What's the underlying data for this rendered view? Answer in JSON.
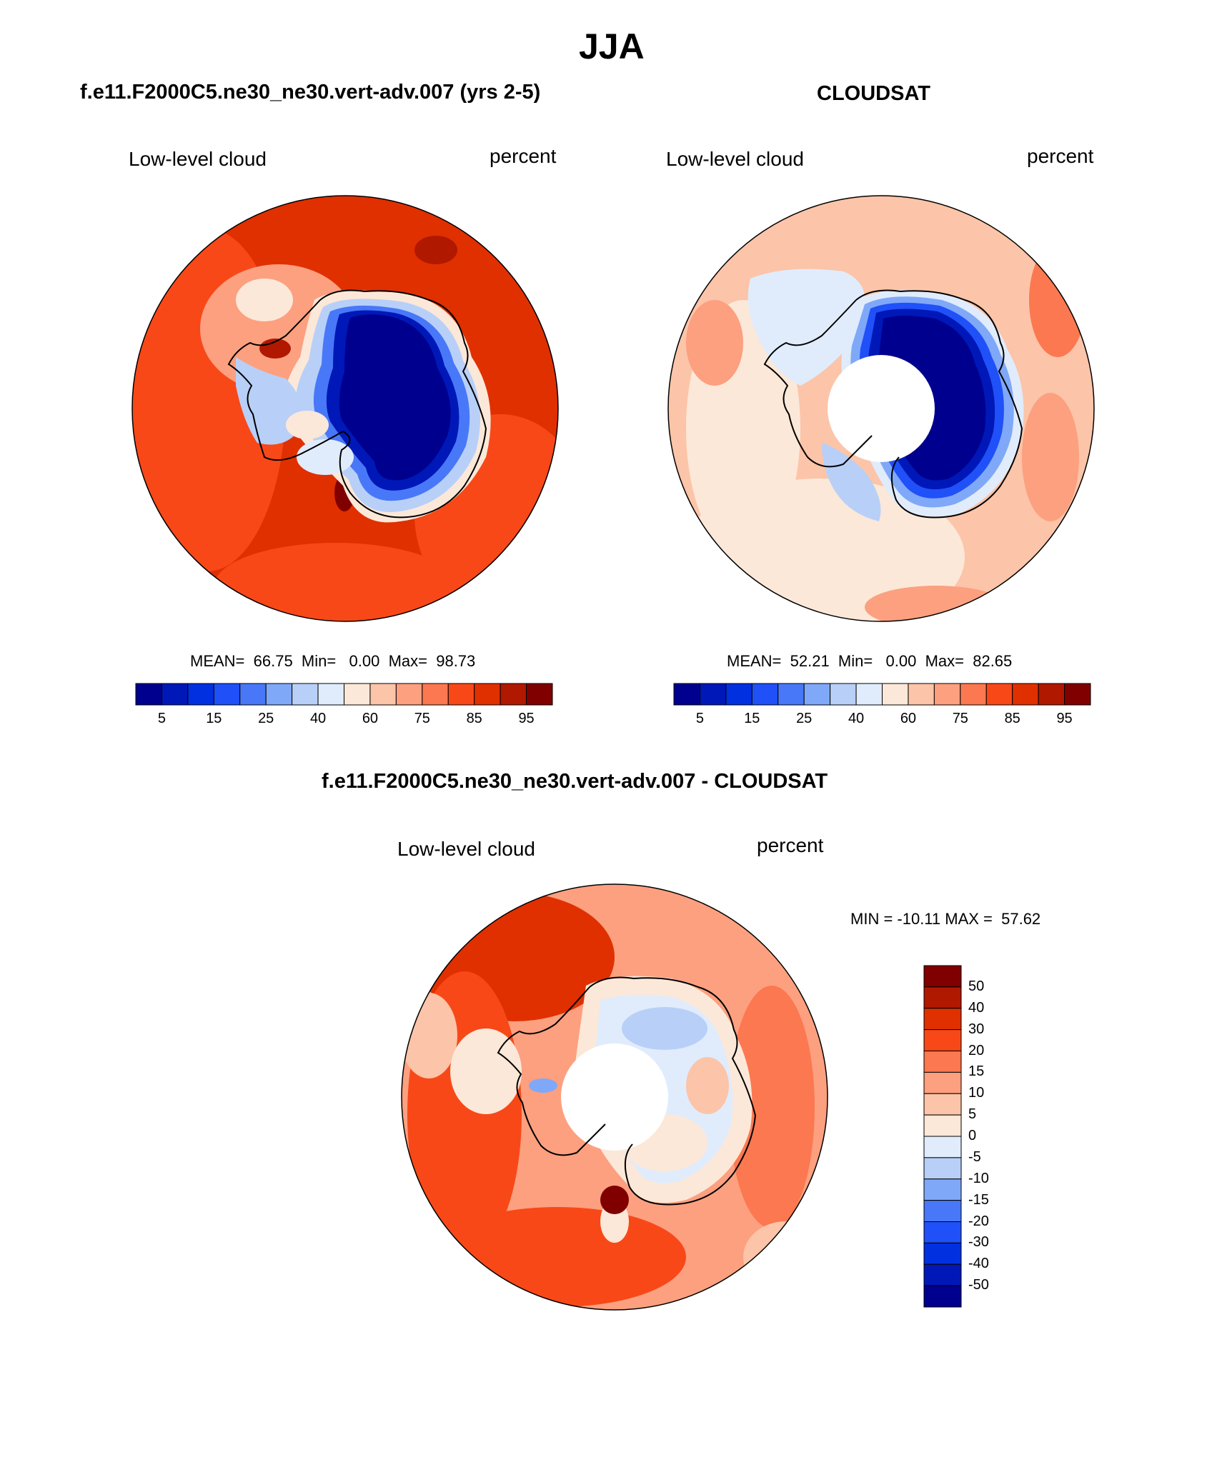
{
  "title": "JJA",
  "colors": {
    "abs_palette": [
      "#00008f",
      "#0018b8",
      "#0030e0",
      "#2050f8",
      "#4878f8",
      "#80a8f8",
      "#b8d0f8",
      "#e0ecfc",
      "#fce8d8",
      "#fcc4a8",
      "#fca080",
      "#fc7850",
      "#f84818",
      "#e03000",
      "#b01800",
      "#800000"
    ],
    "diff_palette": [
      "#00008f",
      "#0018b8",
      "#0030e0",
      "#2050f8",
      "#4878f8",
      "#80a8f8",
      "#b8d0f8",
      "#e0ecfc",
      "#fce8d8",
      "#fcc4a8",
      "#fca080",
      "#fc7850",
      "#f84818",
      "#e03000",
      "#b01800",
      "#800000"
    ]
  },
  "panels": [
    {
      "id": "model",
      "header": "f.e11.F2000C5.ne30_ne30.vert-adv.007 (yrs 2-5)",
      "variable": "Low-level cloud",
      "units": "percent",
      "stats": "MEAN=  66.75  Min=   0.00  Max=  98.73",
      "colorbar_labels": [
        "5",
        "15",
        "25",
        "40",
        "60",
        "75",
        "85",
        "95"
      ],
      "pole_hole": false
    },
    {
      "id": "obs",
      "header": "CLOUDSAT",
      "variable": "Low-level cloud",
      "units": "percent",
      "stats": "MEAN=  52.21  Min=   0.00  Max=  82.65",
      "colorbar_labels": [
        "5",
        "15",
        "25",
        "40",
        "60",
        "75",
        "85",
        "95"
      ],
      "pole_hole": true
    },
    {
      "id": "diff",
      "header": "f.e11.F2000C5.ne30_ne30.vert-adv.007 - CLOUDSAT",
      "variable": "Low-level cloud",
      "units": "percent",
      "stats": "MIN = -10.11 MAX =  57.62",
      "colorbar_labels": [
        "50",
        "40",
        "30",
        "20",
        "15",
        "10",
        "5",
        "0",
        "-5",
        "-10",
        "-15",
        "-20",
        "-30",
        "-40",
        "-50"
      ],
      "pole_hole": true
    }
  ]
}
